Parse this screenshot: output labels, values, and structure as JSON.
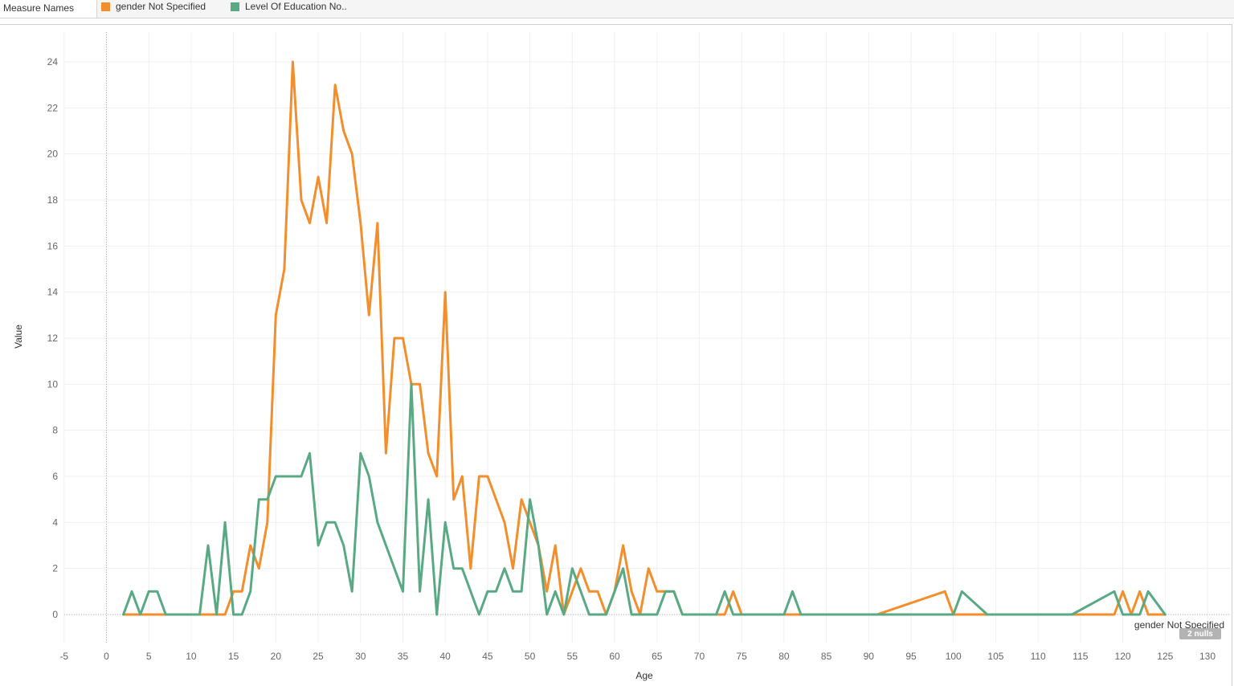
{
  "legend": {
    "title": "Measure Names",
    "items": [
      {
        "label": "gender Not Specified",
        "color": "#f28e2b"
      },
      {
        "label": "Level Of Education No..",
        "color": "#59a984"
      }
    ]
  },
  "chart_data": {
    "type": "line",
    "xlabel": "Age",
    "ylabel": "Value",
    "xlim": [
      -5,
      130
    ],
    "ylim": [
      0,
      24
    ],
    "x_ticks": [
      -5,
      0,
      5,
      10,
      15,
      20,
      25,
      30,
      35,
      40,
      45,
      50,
      55,
      60,
      65,
      70,
      75,
      80,
      85,
      90,
      95,
      100,
      105,
      110,
      115,
      120,
      125,
      130
    ],
    "y_ticks": [
      0,
      2,
      4,
      6,
      8,
      10,
      12,
      14,
      16,
      18,
      20,
      22,
      24
    ],
    "grid": true,
    "end_label": "gender Not Specified",
    "null_badge": "2 nulls",
    "series": [
      {
        "name": "gender Not Specified",
        "color": "#f28e2b",
        "points": [
          [
            2,
            0
          ],
          [
            14,
            0
          ],
          [
            15,
            1
          ],
          [
            16,
            1
          ],
          [
            17,
            3
          ],
          [
            18,
            2
          ],
          [
            19,
            4
          ],
          [
            20,
            13
          ],
          [
            21,
            15
          ],
          [
            22,
            24
          ],
          [
            23,
            18
          ],
          [
            24,
            17
          ],
          [
            25,
            19
          ],
          [
            26,
            17
          ],
          [
            27,
            23
          ],
          [
            28,
            21
          ],
          [
            29,
            20
          ],
          [
            30,
            17
          ],
          [
            31,
            13
          ],
          [
            32,
            17
          ],
          [
            33,
            7
          ],
          [
            34,
            12
          ],
          [
            35,
            12
          ],
          [
            36,
            10
          ],
          [
            37,
            10
          ],
          [
            38,
            7
          ],
          [
            39,
            6
          ],
          [
            40,
            14
          ],
          [
            41,
            5
          ],
          [
            42,
            6
          ],
          [
            43,
            2
          ],
          [
            44,
            6
          ],
          [
            45,
            6
          ],
          [
            47,
            4
          ],
          [
            48,
            2
          ],
          [
            49,
            5
          ],
          [
            50,
            4
          ],
          [
            51,
            3
          ],
          [
            52,
            1
          ],
          [
            53,
            3
          ],
          [
            54,
            0
          ],
          [
            56,
            2
          ],
          [
            57,
            1
          ],
          [
            58,
            1
          ],
          [
            59,
            0
          ],
          [
            60,
            1
          ],
          [
            61,
            3
          ],
          [
            62,
            1
          ],
          [
            63,
            0
          ],
          [
            64,
            2
          ],
          [
            65,
            1
          ],
          [
            66,
            1
          ],
          [
            67,
            1
          ],
          [
            68,
            0
          ],
          [
            73,
            0
          ],
          [
            74,
            1
          ],
          [
            75,
            0
          ],
          [
            91,
            0
          ],
          [
            99,
            1
          ],
          [
            100,
            0
          ],
          [
            119,
            0
          ],
          [
            120,
            1
          ],
          [
            121,
            0
          ],
          [
            122,
            1
          ],
          [
            123,
            0
          ],
          [
            125,
            0
          ]
        ]
      },
      {
        "name": "Level Of Education No..",
        "color": "#59a984",
        "points": [
          [
            2,
            0
          ],
          [
            3,
            1
          ],
          [
            4,
            0
          ],
          [
            5,
            1
          ],
          [
            6,
            1
          ],
          [
            7,
            0
          ],
          [
            11,
            0
          ],
          [
            12,
            3
          ],
          [
            13,
            0
          ],
          [
            14,
            4
          ],
          [
            15,
            0
          ],
          [
            16,
            0
          ],
          [
            17,
            1
          ],
          [
            18,
            5
          ],
          [
            19,
            5
          ],
          [
            20,
            6
          ],
          [
            23,
            6
          ],
          [
            24,
            7
          ],
          [
            25,
            3
          ],
          [
            26,
            4
          ],
          [
            27,
            4
          ],
          [
            28,
            3
          ],
          [
            29,
            1
          ],
          [
            30,
            7
          ],
          [
            31,
            6
          ],
          [
            32,
            4
          ],
          [
            35,
            1
          ],
          [
            36,
            10
          ],
          [
            37,
            1
          ],
          [
            38,
            5
          ],
          [
            39,
            0
          ],
          [
            40,
            4
          ],
          [
            41,
            2
          ],
          [
            42,
            2
          ],
          [
            44,
            0
          ],
          [
            45,
            1
          ],
          [
            46,
            1
          ],
          [
            47,
            2
          ],
          [
            48,
            1
          ],
          [
            49,
            1
          ],
          [
            50,
            5
          ],
          [
            51,
            3
          ],
          [
            52,
            0
          ],
          [
            53,
            1
          ],
          [
            54,
            0
          ],
          [
            55,
            2
          ],
          [
            56,
            1
          ],
          [
            57,
            0
          ],
          [
            59,
            0
          ],
          [
            60,
            1
          ],
          [
            61,
            2
          ],
          [
            62,
            0
          ],
          [
            65,
            0
          ],
          [
            66,
            1
          ],
          [
            67,
            1
          ],
          [
            68,
            0
          ],
          [
            72,
            0
          ],
          [
            73,
            1
          ],
          [
            74,
            0
          ],
          [
            80,
            0
          ],
          [
            81,
            1
          ],
          [
            82,
            0
          ],
          [
            100,
            0
          ],
          [
            101,
            1
          ],
          [
            104,
            0
          ],
          [
            114,
            0
          ],
          [
            119,
            1
          ],
          [
            120,
            0
          ],
          [
            122,
            0
          ],
          [
            123,
            1
          ],
          [
            125,
            0
          ]
        ]
      }
    ]
  }
}
